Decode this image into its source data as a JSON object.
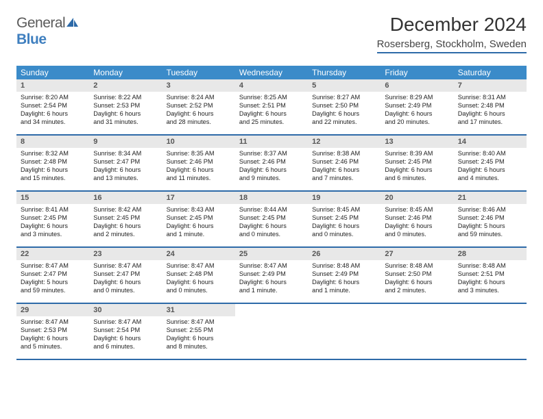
{
  "logo": {
    "text1": "General",
    "text2": "Blue"
  },
  "title": "December 2024",
  "location": "Rosersberg, Stockholm, Sweden",
  "header_bg": "#3b8bc9",
  "rule_color": "#2d6aa8",
  "daynum_bg": "#e8e8e8",
  "weekdays": [
    "Sunday",
    "Monday",
    "Tuesday",
    "Wednesday",
    "Thursday",
    "Friday",
    "Saturday"
  ],
  "weeks": [
    [
      {
        "n": "1",
        "sr": "Sunrise: 8:20 AM",
        "ss": "Sunset: 2:54 PM",
        "d1": "Daylight: 6 hours",
        "d2": "and 34 minutes."
      },
      {
        "n": "2",
        "sr": "Sunrise: 8:22 AM",
        "ss": "Sunset: 2:53 PM",
        "d1": "Daylight: 6 hours",
        "d2": "and 31 minutes."
      },
      {
        "n": "3",
        "sr": "Sunrise: 8:24 AM",
        "ss": "Sunset: 2:52 PM",
        "d1": "Daylight: 6 hours",
        "d2": "and 28 minutes."
      },
      {
        "n": "4",
        "sr": "Sunrise: 8:25 AM",
        "ss": "Sunset: 2:51 PM",
        "d1": "Daylight: 6 hours",
        "d2": "and 25 minutes."
      },
      {
        "n": "5",
        "sr": "Sunrise: 8:27 AM",
        "ss": "Sunset: 2:50 PM",
        "d1": "Daylight: 6 hours",
        "d2": "and 22 minutes."
      },
      {
        "n": "6",
        "sr": "Sunrise: 8:29 AM",
        "ss": "Sunset: 2:49 PM",
        "d1": "Daylight: 6 hours",
        "d2": "and 20 minutes."
      },
      {
        "n": "7",
        "sr": "Sunrise: 8:31 AM",
        "ss": "Sunset: 2:48 PM",
        "d1": "Daylight: 6 hours",
        "d2": "and 17 minutes."
      }
    ],
    [
      {
        "n": "8",
        "sr": "Sunrise: 8:32 AM",
        "ss": "Sunset: 2:48 PM",
        "d1": "Daylight: 6 hours",
        "d2": "and 15 minutes."
      },
      {
        "n": "9",
        "sr": "Sunrise: 8:34 AM",
        "ss": "Sunset: 2:47 PM",
        "d1": "Daylight: 6 hours",
        "d2": "and 13 minutes."
      },
      {
        "n": "10",
        "sr": "Sunrise: 8:35 AM",
        "ss": "Sunset: 2:46 PM",
        "d1": "Daylight: 6 hours",
        "d2": "and 11 minutes."
      },
      {
        "n": "11",
        "sr": "Sunrise: 8:37 AM",
        "ss": "Sunset: 2:46 PM",
        "d1": "Daylight: 6 hours",
        "d2": "and 9 minutes."
      },
      {
        "n": "12",
        "sr": "Sunrise: 8:38 AM",
        "ss": "Sunset: 2:46 PM",
        "d1": "Daylight: 6 hours",
        "d2": "and 7 minutes."
      },
      {
        "n": "13",
        "sr": "Sunrise: 8:39 AM",
        "ss": "Sunset: 2:45 PM",
        "d1": "Daylight: 6 hours",
        "d2": "and 6 minutes."
      },
      {
        "n": "14",
        "sr": "Sunrise: 8:40 AM",
        "ss": "Sunset: 2:45 PM",
        "d1": "Daylight: 6 hours",
        "d2": "and 4 minutes."
      }
    ],
    [
      {
        "n": "15",
        "sr": "Sunrise: 8:41 AM",
        "ss": "Sunset: 2:45 PM",
        "d1": "Daylight: 6 hours",
        "d2": "and 3 minutes."
      },
      {
        "n": "16",
        "sr": "Sunrise: 8:42 AM",
        "ss": "Sunset: 2:45 PM",
        "d1": "Daylight: 6 hours",
        "d2": "and 2 minutes."
      },
      {
        "n": "17",
        "sr": "Sunrise: 8:43 AM",
        "ss": "Sunset: 2:45 PM",
        "d1": "Daylight: 6 hours",
        "d2": "and 1 minute."
      },
      {
        "n": "18",
        "sr": "Sunrise: 8:44 AM",
        "ss": "Sunset: 2:45 PM",
        "d1": "Daylight: 6 hours",
        "d2": "and 0 minutes."
      },
      {
        "n": "19",
        "sr": "Sunrise: 8:45 AM",
        "ss": "Sunset: 2:45 PM",
        "d1": "Daylight: 6 hours",
        "d2": "and 0 minutes."
      },
      {
        "n": "20",
        "sr": "Sunrise: 8:45 AM",
        "ss": "Sunset: 2:46 PM",
        "d1": "Daylight: 6 hours",
        "d2": "and 0 minutes."
      },
      {
        "n": "21",
        "sr": "Sunrise: 8:46 AM",
        "ss": "Sunset: 2:46 PM",
        "d1": "Daylight: 5 hours",
        "d2": "and 59 minutes."
      }
    ],
    [
      {
        "n": "22",
        "sr": "Sunrise: 8:47 AM",
        "ss": "Sunset: 2:47 PM",
        "d1": "Daylight: 5 hours",
        "d2": "and 59 minutes."
      },
      {
        "n": "23",
        "sr": "Sunrise: 8:47 AM",
        "ss": "Sunset: 2:47 PM",
        "d1": "Daylight: 6 hours",
        "d2": "and 0 minutes."
      },
      {
        "n": "24",
        "sr": "Sunrise: 8:47 AM",
        "ss": "Sunset: 2:48 PM",
        "d1": "Daylight: 6 hours",
        "d2": "and 0 minutes."
      },
      {
        "n": "25",
        "sr": "Sunrise: 8:47 AM",
        "ss": "Sunset: 2:49 PM",
        "d1": "Daylight: 6 hours",
        "d2": "and 1 minute."
      },
      {
        "n": "26",
        "sr": "Sunrise: 8:48 AM",
        "ss": "Sunset: 2:49 PM",
        "d1": "Daylight: 6 hours",
        "d2": "and 1 minute."
      },
      {
        "n": "27",
        "sr": "Sunrise: 8:48 AM",
        "ss": "Sunset: 2:50 PM",
        "d1": "Daylight: 6 hours",
        "d2": "and 2 minutes."
      },
      {
        "n": "28",
        "sr": "Sunrise: 8:48 AM",
        "ss": "Sunset: 2:51 PM",
        "d1": "Daylight: 6 hours",
        "d2": "and 3 minutes."
      }
    ],
    [
      {
        "n": "29",
        "sr": "Sunrise: 8:47 AM",
        "ss": "Sunset: 2:53 PM",
        "d1": "Daylight: 6 hours",
        "d2": "and 5 minutes."
      },
      {
        "n": "30",
        "sr": "Sunrise: 8:47 AM",
        "ss": "Sunset: 2:54 PM",
        "d1": "Daylight: 6 hours",
        "d2": "and 6 minutes."
      },
      {
        "n": "31",
        "sr": "Sunrise: 8:47 AM",
        "ss": "Sunset: 2:55 PM",
        "d1": "Daylight: 6 hours",
        "d2": "and 8 minutes."
      },
      null,
      null,
      null,
      null
    ]
  ]
}
